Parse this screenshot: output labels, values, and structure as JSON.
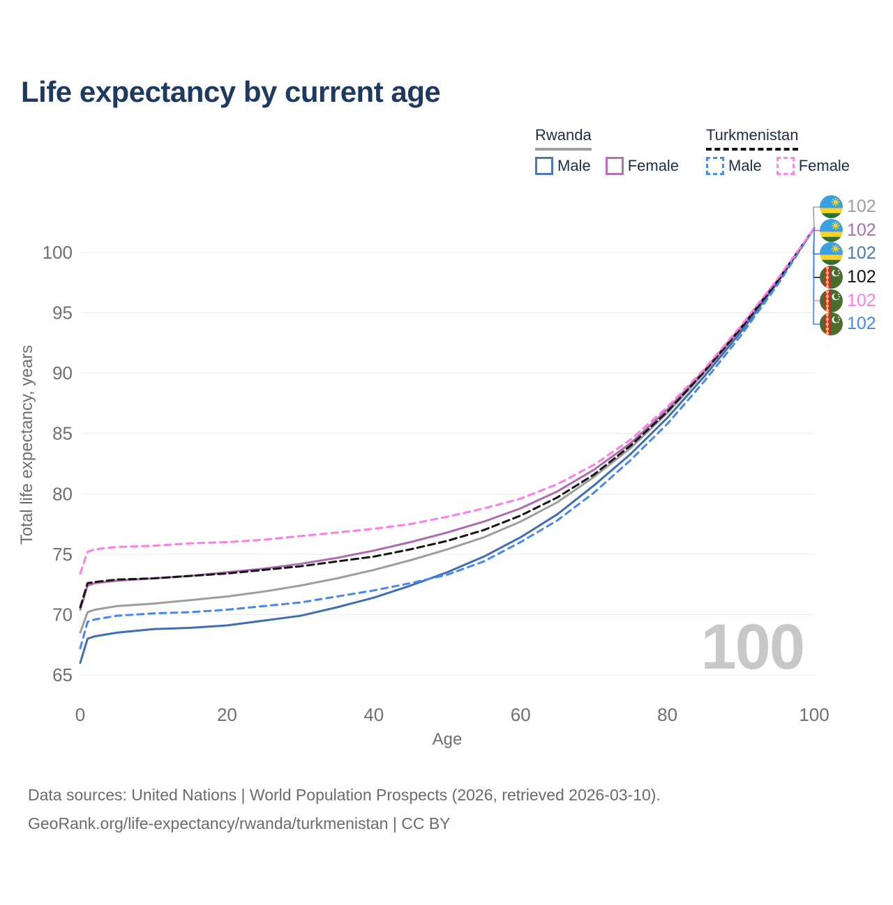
{
  "title": "Life expectancy by current age",
  "legend": {
    "groups": [
      {
        "name": "Rwanda",
        "underline_style": "solid",
        "underline_color": "#9e9e9e",
        "items": [
          {
            "label": "Male",
            "color": "#4a7ab5",
            "dash": false
          },
          {
            "label": "Female",
            "color": "#b671b6",
            "dash": false
          }
        ]
      },
      {
        "name": "Turkmenistan",
        "underline_style": "dashed",
        "underline_color": "#141414",
        "items": [
          {
            "label": "Male",
            "color": "#4b8bf5",
            "dash": true
          },
          {
            "label": "Female",
            "color": "#ff85e8",
            "dash": true
          }
        ]
      }
    ]
  },
  "watermark": "100",
  "footer": {
    "line1": "Data sources: United Nations | World Population Prospects (2026, retrieved 2026-03-10).",
    "line2": "GeoRank.org/life-expectancy/rwanda/turkmenistan | CC BY"
  },
  "chart_data": {
    "type": "line",
    "title": "Life expectancy by current age",
    "xlabel": "Age",
    "ylabel": "Total life expectancy, years",
    "xlim": [
      0,
      100
    ],
    "ylim": [
      65,
      102
    ],
    "xticks": [
      0,
      20,
      40,
      60,
      80,
      100
    ],
    "yticks": [
      65,
      70,
      75,
      80,
      85,
      90,
      95,
      100
    ],
    "grid": "horizontal",
    "legend_position": "top-right",
    "x": [
      0,
      1,
      2,
      5,
      10,
      15,
      20,
      25,
      30,
      35,
      40,
      45,
      50,
      55,
      60,
      65,
      70,
      75,
      80,
      85,
      90,
      95,
      100
    ],
    "series": [
      {
        "id": "rwanda-both",
        "name": "Rwanda Both sexes",
        "country": "Rwanda",
        "sex": "Both sexes",
        "color": "#9e9e9e",
        "dash": "solid",
        "values": [
          68.5,
          70.2,
          70.4,
          70.7,
          70.9,
          71.2,
          71.5,
          71.9,
          72.4,
          73.0,
          73.7,
          74.5,
          75.4,
          76.4,
          77.7,
          79.3,
          81.4,
          83.8,
          86.7,
          90.0,
          93.6,
          97.6,
          102
        ]
      },
      {
        "id": "rwanda-male",
        "name": "Rwanda Male",
        "country": "Rwanda",
        "sex": "Male",
        "color": "#3f6eb4",
        "dash": "solid",
        "values": [
          66.0,
          68.0,
          68.2,
          68.5,
          68.8,
          68.9,
          69.1,
          69.5,
          69.9,
          70.6,
          71.4,
          72.4,
          73.5,
          74.8,
          76.4,
          78.3,
          80.7,
          83.3,
          86.3,
          89.7,
          93.4,
          97.5,
          102
        ]
      },
      {
        "id": "rwanda-female",
        "name": "Rwanda Female",
        "country": "Rwanda",
        "sex": "Female",
        "color": "#ad6cae",
        "dash": "solid",
        "values": [
          70.4,
          72.4,
          72.6,
          72.8,
          73.0,
          73.2,
          73.5,
          73.8,
          74.2,
          74.7,
          75.3,
          76.0,
          76.8,
          77.7,
          78.8,
          80.2,
          82.0,
          84.2,
          87.0,
          90.2,
          93.8,
          97.7,
          102
        ]
      },
      {
        "id": "turkmenistan-both",
        "name": "Turkmenistan Both sexes",
        "country": "Turkmenistan",
        "sex": "Both sexes",
        "color": "#141414",
        "dash": "dashed",
        "dasharray": "10 6",
        "values": [
          70.6,
          72.6,
          72.7,
          72.9,
          73.0,
          73.2,
          73.4,
          73.7,
          74.0,
          74.4,
          74.8,
          75.4,
          76.1,
          77.0,
          78.2,
          79.7,
          81.6,
          84.0,
          86.8,
          90.1,
          93.7,
          97.6,
          102
        ]
      },
      {
        "id": "turkmenistan-male",
        "name": "Turkmenistan Male",
        "country": "Turkmenistan",
        "sex": "Male",
        "color": "#4688f0",
        "dash": "dashed",
        "dasharray": "9 7",
        "values": [
          67.2,
          69.4,
          69.6,
          69.9,
          70.1,
          70.2,
          70.4,
          70.7,
          71.0,
          71.5,
          72.0,
          72.6,
          73.3,
          74.4,
          76.0,
          77.8,
          80.1,
          82.8,
          85.8,
          89.3,
          93.1,
          97.3,
          102
        ]
      },
      {
        "id": "turkmenistan-female",
        "name": "Turkmenistan Female",
        "country": "Turkmenistan",
        "sex": "Female",
        "color": "#ff7de4",
        "dash": "dashed",
        "dasharray": "9 7",
        "values": [
          73.4,
          75.2,
          75.4,
          75.6,
          75.7,
          75.9,
          76.0,
          76.2,
          76.5,
          76.8,
          77.1,
          77.5,
          78.1,
          78.8,
          79.6,
          80.8,
          82.4,
          84.5,
          87.2,
          90.3,
          93.9,
          97.8,
          102
        ]
      }
    ],
    "endpoints": [
      {
        "country": "Rwanda",
        "flag": "rw",
        "value": "102",
        "color": "#9e9e9e"
      },
      {
        "country": "Rwanda",
        "flag": "rw",
        "value": "102",
        "color": "#ad6cae"
      },
      {
        "country": "Rwanda",
        "flag": "rw",
        "value": "102",
        "color": "#4a7ab5"
      },
      {
        "country": "Turkmenistan",
        "flag": "tm",
        "value": "102",
        "color": "#141414"
      },
      {
        "country": "Turkmenistan",
        "flag": "tm",
        "value": "102",
        "color": "#ff7de4"
      },
      {
        "country": "Turkmenistan",
        "flag": "tm",
        "value": "102",
        "color": "#4688f0"
      }
    ]
  }
}
